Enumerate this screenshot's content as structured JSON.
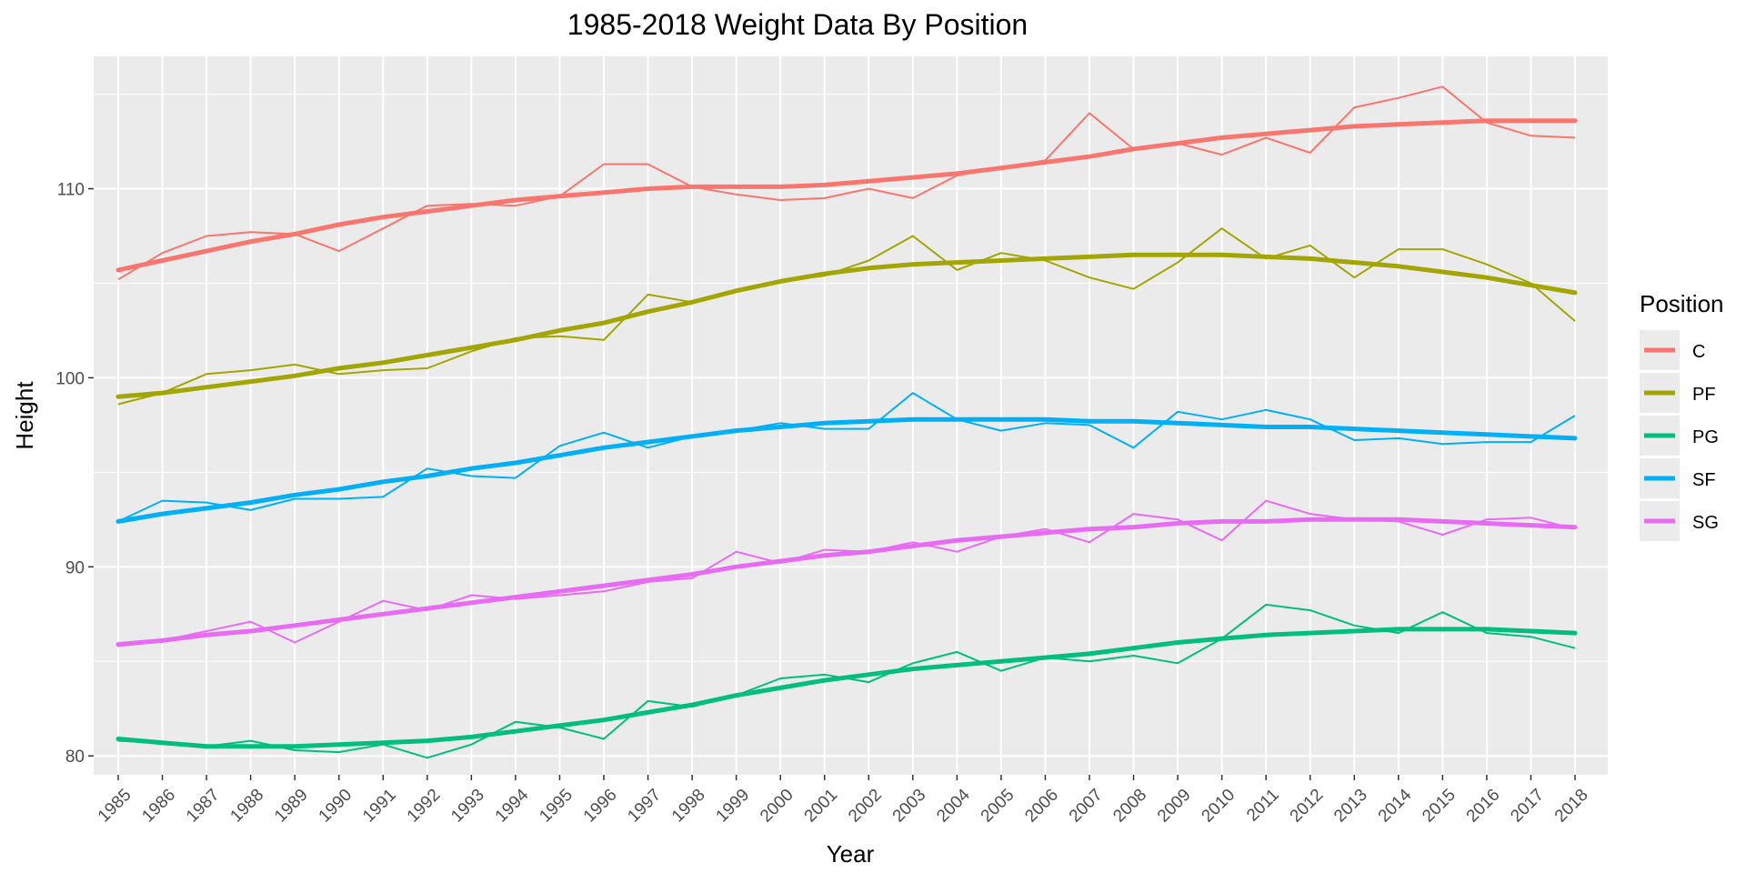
{
  "chart_data": {
    "type": "line",
    "title": "1985-2018 Weight Data By Position",
    "xlabel": "Year",
    "ylabel": "Height",
    "ylim": [
      79,
      117
    ],
    "yticks": [
      80,
      90,
      100,
      110
    ],
    "grid": true,
    "legend_position": "right",
    "legend_title": "Position",
    "x": [
      1985,
      1986,
      1987,
      1988,
      1989,
      1990,
      1991,
      1992,
      1993,
      1994,
      1995,
      1996,
      1997,
      1998,
      1999,
      2000,
      2001,
      2002,
      2003,
      2004,
      2005,
      2006,
      2007,
      2008,
      2009,
      2010,
      2011,
      2012,
      2013,
      2014,
      2015,
      2016,
      2017,
      2018
    ],
    "series": [
      {
        "name": "C",
        "color": "#F8766D",
        "values": [
          105.2,
          106.6,
          107.5,
          107.7,
          107.6,
          106.7,
          107.9,
          109.1,
          109.2,
          109.1,
          109.6,
          111.3,
          111.3,
          110.1,
          109.7,
          109.4,
          109.5,
          110.0,
          109.5,
          110.7,
          111.1,
          111.5,
          114.0,
          112.1,
          112.4,
          111.8,
          112.7,
          111.9,
          114.3,
          114.8,
          115.4,
          113.5,
          112.8,
          112.7
        ],
        "trend": [
          105.7,
          106.2,
          106.7,
          107.2,
          107.6,
          108.1,
          108.5,
          108.8,
          109.1,
          109.4,
          109.6,
          109.8,
          110.0,
          110.1,
          110.1,
          110.1,
          110.2,
          110.4,
          110.6,
          110.8,
          111.1,
          111.4,
          111.7,
          112.1,
          112.4,
          112.7,
          112.9,
          113.1,
          113.3,
          113.4,
          113.5,
          113.6,
          113.6,
          113.6
        ]
      },
      {
        "name": "PF",
        "color": "#A3A500",
        "values": [
          98.6,
          99.2,
          100.2,
          100.4,
          100.7,
          100.2,
          100.4,
          100.5,
          101.4,
          102.1,
          102.2,
          102.0,
          104.4,
          104.0,
          104.6,
          105.1,
          105.4,
          106.2,
          107.5,
          105.7,
          106.6,
          106.2,
          105.3,
          104.7,
          106.1,
          107.9,
          106.3,
          107.0,
          105.3,
          106.8,
          106.8,
          106.0,
          105.0,
          103.0
        ],
        "trend": [
          99.0,
          99.2,
          99.5,
          99.8,
          100.1,
          100.5,
          100.8,
          101.2,
          101.6,
          102.0,
          102.5,
          102.9,
          103.5,
          104.0,
          104.6,
          105.1,
          105.5,
          105.8,
          106.0,
          106.1,
          106.2,
          106.3,
          106.4,
          106.5,
          106.5,
          106.5,
          106.4,
          106.3,
          106.1,
          105.9,
          105.6,
          105.3,
          104.9,
          104.5
        ]
      },
      {
        "name": "PG",
        "color": "#00BF7D",
        "values": [
          80.8,
          80.7,
          80.5,
          80.8,
          80.3,
          80.2,
          80.6,
          79.9,
          80.6,
          81.8,
          81.5,
          80.9,
          82.9,
          82.6,
          83.2,
          84.1,
          84.3,
          83.9,
          84.9,
          85.5,
          84.5,
          85.2,
          85.0,
          85.3,
          84.9,
          86.2,
          88.0,
          87.7,
          86.9,
          86.5,
          87.6,
          86.5,
          86.3,
          85.7
        ],
        "trend": [
          80.9,
          80.7,
          80.5,
          80.5,
          80.5,
          80.6,
          80.7,
          80.8,
          81.0,
          81.3,
          81.6,
          81.9,
          82.3,
          82.7,
          83.2,
          83.6,
          84.0,
          84.3,
          84.6,
          84.8,
          85.0,
          85.2,
          85.4,
          85.7,
          86.0,
          86.2,
          86.4,
          86.5,
          86.6,
          86.7,
          86.7,
          86.7,
          86.6,
          86.5
        ]
      },
      {
        "name": "SF",
        "color": "#00B0F6",
        "values": [
          92.4,
          93.5,
          93.4,
          93.0,
          93.6,
          93.6,
          93.7,
          95.2,
          94.8,
          94.7,
          96.4,
          97.1,
          96.3,
          96.9,
          97.2,
          97.6,
          97.3,
          97.3,
          99.2,
          97.8,
          97.2,
          97.6,
          97.5,
          96.3,
          98.2,
          97.8,
          98.3,
          97.8,
          96.7,
          96.8,
          96.5,
          96.6,
          96.6,
          98.0
        ],
        "trend": [
          92.4,
          92.8,
          93.1,
          93.4,
          93.8,
          94.1,
          94.5,
          94.8,
          95.2,
          95.5,
          95.9,
          96.3,
          96.6,
          96.9,
          97.2,
          97.4,
          97.6,
          97.7,
          97.8,
          97.8,
          97.8,
          97.8,
          97.7,
          97.7,
          97.6,
          97.5,
          97.4,
          97.4,
          97.3,
          97.2,
          97.1,
          97.0,
          96.9,
          96.8
        ]
      },
      {
        "name": "SG",
        "color": "#E76BF3",
        "values": [
          85.8,
          86.1,
          86.6,
          87.1,
          86.0,
          87.1,
          88.2,
          87.7,
          88.5,
          88.3,
          88.5,
          88.7,
          89.2,
          89.4,
          90.8,
          90.2,
          90.9,
          90.8,
          91.3,
          90.8,
          91.6,
          92.0,
          91.3,
          92.8,
          92.5,
          91.4,
          93.5,
          92.8,
          92.5,
          92.4,
          91.7,
          92.5,
          92.6,
          92.0
        ],
        "trend": [
          85.9,
          86.1,
          86.4,
          86.6,
          86.9,
          87.2,
          87.5,
          87.8,
          88.1,
          88.4,
          88.7,
          89.0,
          89.3,
          89.6,
          90.0,
          90.3,
          90.6,
          90.8,
          91.1,
          91.4,
          91.6,
          91.8,
          92.0,
          92.1,
          92.3,
          92.4,
          92.4,
          92.5,
          92.5,
          92.5,
          92.4,
          92.3,
          92.2,
          92.1
        ]
      }
    ]
  }
}
